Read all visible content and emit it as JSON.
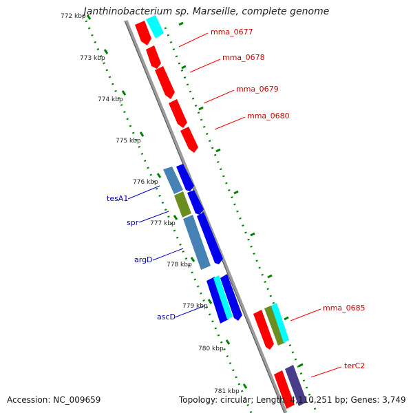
{
  "title": "Janthinobacterium sp. Marseille, complete genome",
  "footer": {
    "accession": "Accession: NC_009659",
    "summary": "Topology: circular; Length: 4,110,251 bp; Genes: 3,749"
  },
  "colors": {
    "red": "#ff0000",
    "cyan": "#00ffff",
    "blue": "#0000ee",
    "steel": "#4682b4",
    "olive": "#6b8e23",
    "slate": "#483d8b",
    "axis": "#888888",
    "ruler": "#008000",
    "label_red": "#cc0000",
    "label_blue": "#0000aa"
  },
  "scale_labels": [
    "772 kbp",
    "773 kbp",
    "774 kbp",
    "775 kbp",
    "776 kbp",
    "777 kbp",
    "778 kbp",
    "779 kbp",
    "780 kbp",
    "781 kbp"
  ],
  "gene_labels": {
    "mma_0677": "mma_0677",
    "mma_0678": "mma_0678",
    "mma_0679": "mma_0679",
    "mma_0680": "mma_0680",
    "mma_0685": "mma_0685",
    "terC2": "terC2",
    "tesA1": "tesA1",
    "spr": "spr",
    "argD": "argD",
    "ascD": "ascD"
  }
}
